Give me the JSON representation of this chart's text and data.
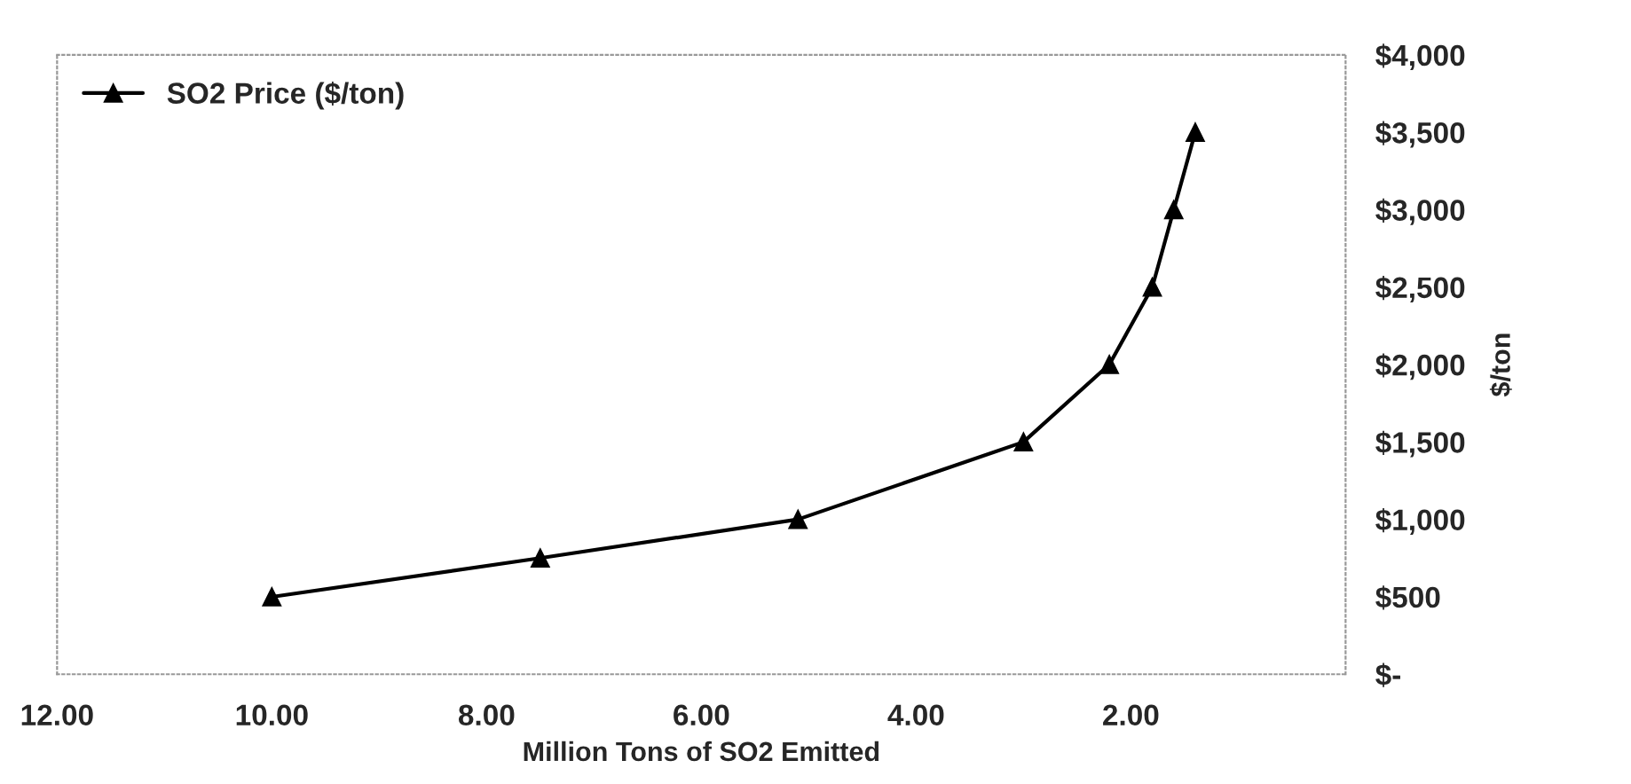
{
  "chart_data": {
    "type": "line",
    "xlabel": "Million Tons of SO2 Emitted",
    "ylabel": "$/ton",
    "x": [
      10.0,
      7.5,
      5.1,
      3.0,
      2.2,
      1.8,
      1.6,
      1.4
    ],
    "series": [
      {
        "name": "SO2 Price ($/ton)",
        "color": "#000000",
        "values": [
          500,
          750,
          1000,
          1500,
          2000,
          2500,
          3000,
          3500
        ]
      }
    ],
    "xlim": [
      12,
      0
    ],
    "xticks": [
      {
        "value": 12,
        "label": "12.00"
      },
      {
        "value": 10,
        "label": "10.00"
      },
      {
        "value": 8,
        "label": "8.00"
      },
      {
        "value": 6,
        "label": "6.00"
      },
      {
        "value": 4,
        "label": "4.00"
      },
      {
        "value": 2,
        "label": "2.00"
      }
    ],
    "ylim": [
      0,
      4000
    ],
    "yticks": [
      {
        "value": 0,
        "label": "$-"
      },
      {
        "value": 500,
        "label": "$500"
      },
      {
        "value": 1000,
        "label": "$1,000"
      },
      {
        "value": 1500,
        "label": "$1,500"
      },
      {
        "value": 2000,
        "label": "$2,000"
      },
      {
        "value": 2500,
        "label": "$2,500"
      },
      {
        "value": 3000,
        "label": "$3,000"
      },
      {
        "value": 3500,
        "label": "$3,500"
      },
      {
        "value": 4000,
        "label": "$4,000"
      }
    ],
    "marker": "triangle",
    "line_style": "solid",
    "legend": "top left",
    "grid": false
  }
}
